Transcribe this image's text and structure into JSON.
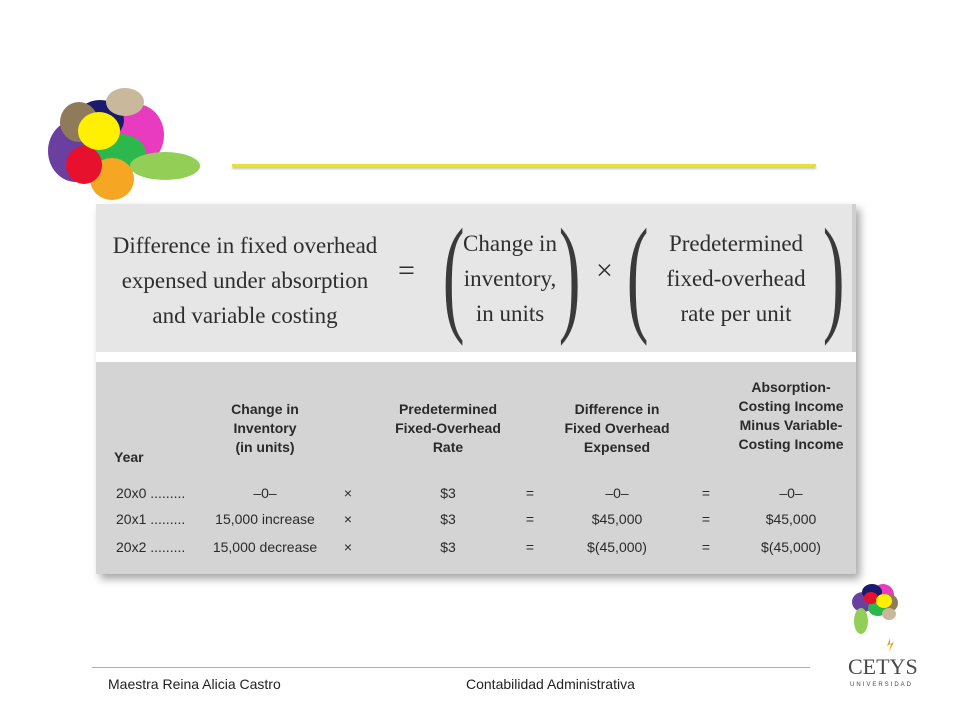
{
  "formula": {
    "left_lines": [
      "Difference in fixed overhead",
      "expensed under absorption",
      "and variable costing"
    ],
    "equals": "=",
    "middle_lines": [
      "Change in",
      "inventory,",
      "in units"
    ],
    "times": "×",
    "right_lines": [
      "Predetermined",
      "fixed-overhead",
      "rate per unit"
    ]
  },
  "table": {
    "headers": {
      "year": "Year",
      "change": [
        "Change in",
        "Inventory",
        "(in units)"
      ],
      "rate": [
        "Predetermined",
        "Fixed-Overhead",
        "Rate"
      ],
      "difference": [
        "Difference in",
        "Fixed Overhead",
        "Expensed"
      ],
      "income": [
        "Absorption-",
        "Costing Income",
        "Minus Variable-",
        "Costing Income"
      ]
    },
    "rows": [
      {
        "year": "20x0 .........",
        "change": "–0–",
        "times": "×",
        "rate": "$3",
        "eq1": "=",
        "difference": "–0–",
        "eq2": "=",
        "income": "–0–"
      },
      {
        "year": "20x1 .........",
        "change": "15,000 increase",
        "times": "×",
        "rate": "$3",
        "eq1": "=",
        "difference": "$45,000",
        "eq2": "=",
        "income": "$45,000"
      },
      {
        "year": "20x2 .........",
        "change": "15,000 decrease",
        "times": "×",
        "rate": "$3",
        "eq1": "=",
        "difference": "$(45,000)",
        "eq2": "=",
        "income": "$(45,000)"
      }
    ]
  },
  "footer": {
    "author": "Maestra Reina Alicia Castro",
    "course": "Contabilidad Administrativa",
    "logo_text": "CETYS",
    "logo_subtext": "UNIVERSIDAD"
  },
  "colors": {
    "accent_rule": "#e8e03a",
    "panel_bg": "#d4d4d4"
  }
}
